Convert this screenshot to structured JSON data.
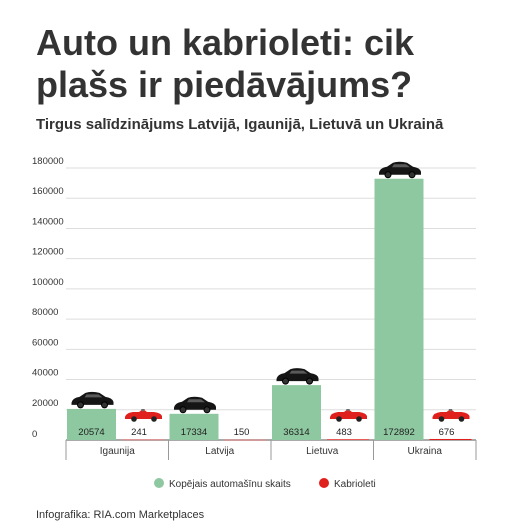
{
  "header": {
    "title": "Auto un kabrioleti: cik plašs ir piedāvājums?",
    "subtitle": "Tirgus salīdzinājums Latvijā, Igaunijā, Lietuvā un Ukrainā"
  },
  "footer": {
    "credit": "Infografika: RIA.com Marketplaces"
  },
  "chart_data": {
    "type": "bar",
    "categories": [
      "Igaunija",
      "Latvija",
      "Lietuva",
      "Ukraina"
    ],
    "series": [
      {
        "name": "Kopējais automašīnu skaits",
        "values": [
          20574,
          17334,
          36314,
          172892
        ],
        "color": "#8ec8a0"
      },
      {
        "name": "Kabrioleti",
        "values": [
          241,
          150,
          483,
          676
        ],
        "color": "#e0201c"
      }
    ],
    "yticks": [
      "0",
      "20000",
      "40000",
      "60000",
      "80000",
      "100000",
      "120000",
      "140000",
      "160000",
      "180000"
    ],
    "ylim": [
      0,
      180000
    ],
    "grid": true,
    "legend_position": "bottom",
    "icons": {
      "total": "black-car-icon",
      "cabrio": "red-convertible-icon"
    }
  }
}
